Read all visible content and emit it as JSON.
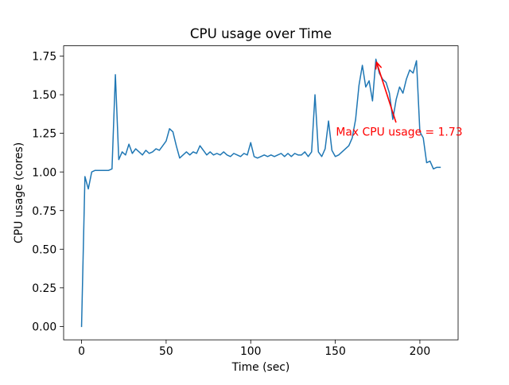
{
  "figure": {
    "background": "#ffffff"
  },
  "chart_data": {
    "type": "line",
    "title": "CPU usage over Time",
    "xlabel": "Time (sec)",
    "ylabel": "CPU usage (cores)",
    "grid": false,
    "legend": false,
    "xlim": [
      -10.6,
      222.6
    ],
    "ylim": [
      -0.0865,
      1.8165
    ],
    "xticks": {
      "values": [
        0,
        50,
        100,
        150,
        200
      ],
      "labels": [
        "0",
        "50",
        "100",
        "150",
        "200"
      ]
    },
    "yticks": {
      "values": [
        0.0,
        0.25,
        0.5,
        0.75,
        1.0,
        1.25,
        1.5,
        1.75
      ],
      "labels": [
        "0.00",
        "0.25",
        "0.50",
        "0.75",
        "1.00",
        "1.25",
        "1.50",
        "1.75"
      ]
    },
    "series": [
      {
        "name": "CPU usage",
        "color": "#1f77b4",
        "line_width": 1.5,
        "x": [
          0,
          2,
          4,
          6,
          8,
          10,
          12,
          14,
          16,
          18,
          20,
          22,
          24,
          26,
          28,
          30,
          32,
          34,
          36,
          38,
          40,
          42,
          44,
          46,
          48,
          50,
          52,
          54,
          56,
          58,
          60,
          62,
          64,
          66,
          68,
          70,
          72,
          74,
          76,
          78,
          80,
          82,
          84,
          86,
          88,
          90,
          92,
          94,
          96,
          98,
          100,
          102,
          104,
          106,
          108,
          110,
          112,
          114,
          116,
          118,
          120,
          122,
          124,
          126,
          128,
          130,
          132,
          134,
          136,
          138,
          140,
          142,
          144,
          146,
          148,
          150,
          152,
          154,
          156,
          158,
          160,
          162,
          164,
          166,
          168,
          170,
          172,
          174,
          176,
          178,
          180,
          182,
          184,
          186,
          188,
          190,
          192,
          194,
          196,
          198,
          200,
          202,
          204,
          206,
          208,
          210,
          212
        ],
        "values": [
          0.0,
          0.97,
          0.89,
          1.0,
          1.01,
          1.01,
          1.01,
          1.01,
          1.01,
          1.02,
          1.63,
          1.08,
          1.13,
          1.11,
          1.18,
          1.12,
          1.15,
          1.13,
          1.11,
          1.14,
          1.12,
          1.13,
          1.15,
          1.14,
          1.17,
          1.2,
          1.28,
          1.26,
          1.17,
          1.09,
          1.11,
          1.13,
          1.11,
          1.13,
          1.12,
          1.17,
          1.14,
          1.11,
          1.13,
          1.11,
          1.12,
          1.11,
          1.13,
          1.11,
          1.1,
          1.12,
          1.11,
          1.1,
          1.12,
          1.11,
          1.19,
          1.1,
          1.09,
          1.1,
          1.11,
          1.1,
          1.11,
          1.1,
          1.11,
          1.12,
          1.1,
          1.12,
          1.1,
          1.12,
          1.11,
          1.11,
          1.13,
          1.1,
          1.13,
          1.5,
          1.13,
          1.1,
          1.15,
          1.33,
          1.14,
          1.1,
          1.11,
          1.13,
          1.15,
          1.17,
          1.22,
          1.34,
          1.56,
          1.69,
          1.55,
          1.59,
          1.46,
          1.73,
          1.64,
          1.6,
          1.58,
          1.51,
          1.34,
          1.47,
          1.55,
          1.51,
          1.6,
          1.66,
          1.64,
          1.72,
          1.26,
          1.22,
          1.06,
          1.07,
          1.02,
          1.03,
          1.03
        ]
      }
    ],
    "annotation": {
      "text": "Max CPU usage = 1.73",
      "max_value": 1.73,
      "color": "#ff0000",
      "xy": [
        174.4,
        1.71
      ],
      "xytext": [
        150.4,
        1.235
      ],
      "arrow_tail": [
        185.9,
        1.32
      ]
    }
  }
}
